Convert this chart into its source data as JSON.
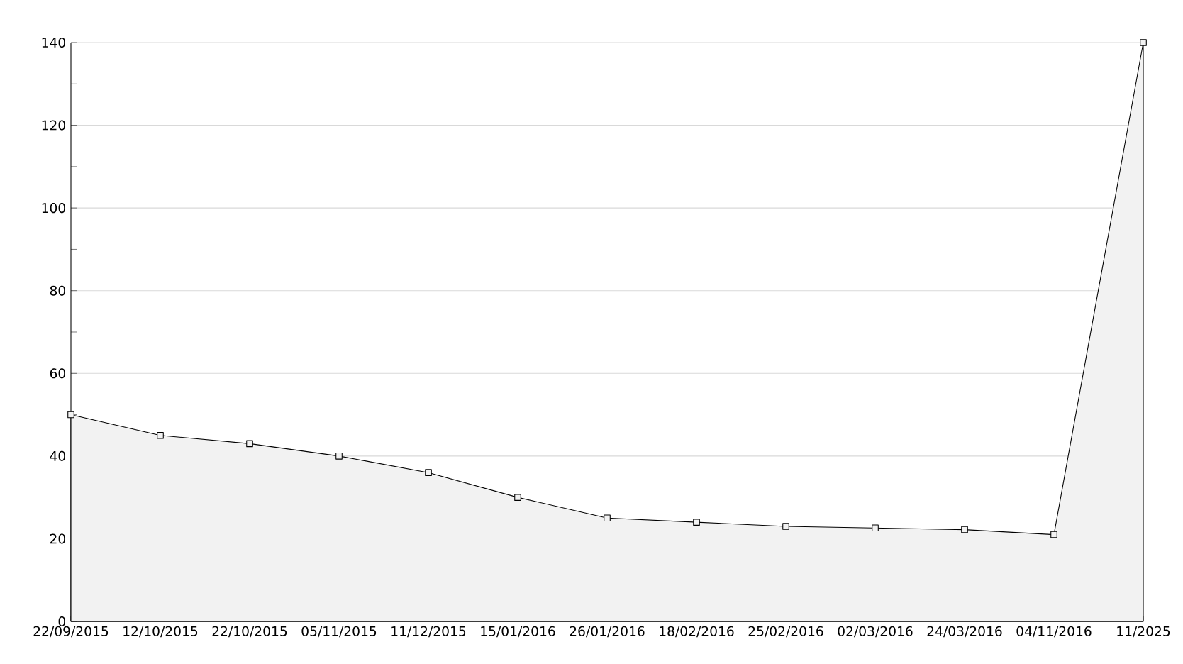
{
  "chart_data": {
    "type": "area",
    "categories": [
      "22/09/2015",
      "12/10/2015",
      "22/10/2015",
      "05/11/2015",
      "11/12/2015",
      "15/01/2016",
      "26/01/2016",
      "18/02/2016",
      "25/02/2016",
      "02/03/2016",
      "24/03/2016",
      "04/11/2016",
      "11/2025"
    ],
    "series": [
      {
        "color": "#000000",
        "values": [
          50,
          45,
          43,
          40,
          36,
          30,
          25,
          24,
          23,
          22.6,
          22.2,
          21,
          140
        ]
      }
    ],
    "ylim": [
      0,
      140
    ],
    "yticks": [
      0,
      {
        "value": 10,
        "label": null
      },
      20,
      {
        "value": 30,
        "label": null
      },
      40,
      {
        "value": 50,
        "label": null
      },
      60,
      {
        "value": 70,
        "label": null
      },
      80,
      {
        "value": 90,
        "label": null
      },
      100,
      {
        "value": 110,
        "label": null
      },
      120,
      {
        "value": 130,
        "label": null
      },
      140
    ],
    "grid": "y",
    "marker": "square"
  }
}
